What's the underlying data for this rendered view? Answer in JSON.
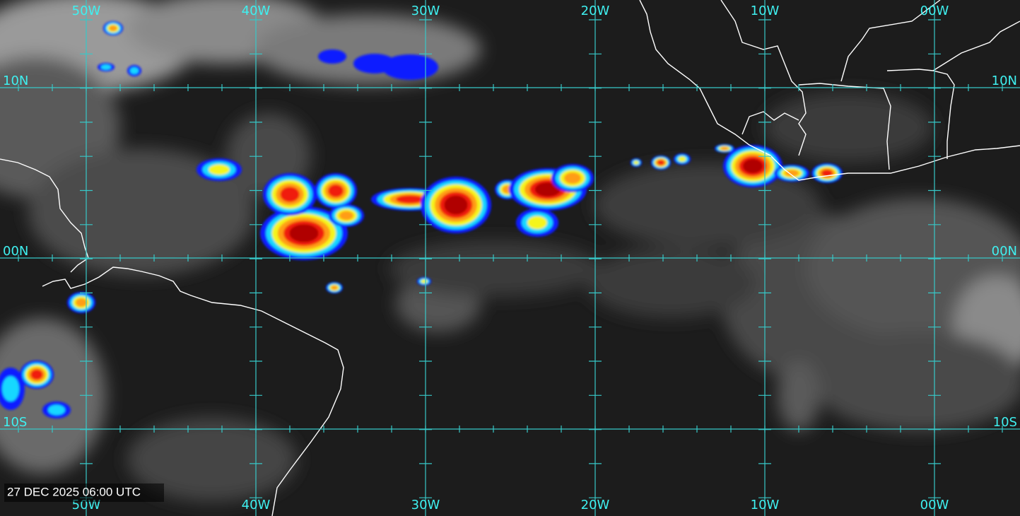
{
  "timestamp": "27 DEC 2025 06:00 UTC",
  "longitude_labels": [
    "50W",
    "40W",
    "30W",
    "20W",
    "10W",
    "00W"
  ],
  "latitude_labels": [
    "10N",
    "00N",
    "10S"
  ]
}
